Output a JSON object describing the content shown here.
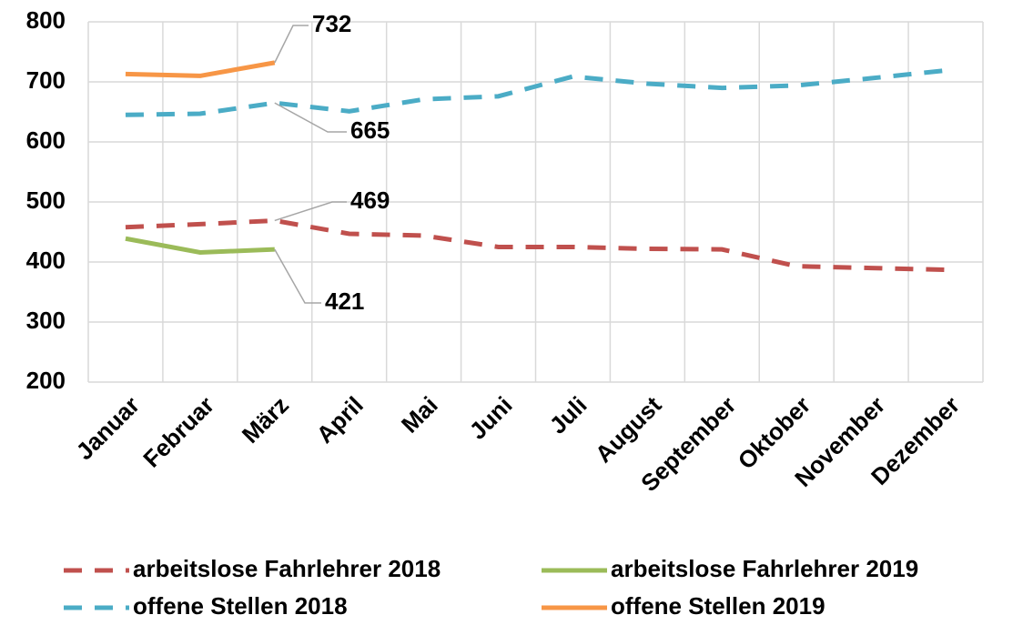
{
  "chart_data": {
    "type": "line",
    "categories": [
      "Januar",
      "Februar",
      "März",
      "April",
      "Mai",
      "Juni",
      "Juli",
      "August",
      "September",
      "Oktober",
      "November",
      "Dezember"
    ],
    "series": [
      {
        "name": "arbeitslose Fahrlehrer 2018",
        "color": "#c0504d",
        "dashed": true,
        "values": [
          458,
          463,
          469,
          447,
          444,
          425,
          425,
          422,
          421,
          393,
          390,
          387
        ]
      },
      {
        "name": "arbeitslose Fahrlehrer 2019",
        "color": "#9bbb59",
        "dashed": false,
        "values": [
          439,
          416,
          421,
          null,
          null,
          null,
          null,
          null,
          null,
          null,
          null,
          null
        ]
      },
      {
        "name": "offene Stellen 2018",
        "color": "#4bacc6",
        "dashed": true,
        "values": [
          645,
          647,
          665,
          651,
          671,
          676,
          709,
          697,
          690,
          694,
          706,
          719
        ]
      },
      {
        "name": "offene Stellen 2019",
        "color": "#f79646",
        "dashed": false,
        "values": [
          713,
          710,
          732,
          null,
          null,
          null,
          null,
          null,
          null,
          null,
          null,
          null
        ]
      }
    ],
    "ylim": [
      200,
      800
    ],
    "yticks": [
      200,
      300,
      400,
      500,
      600,
      700,
      800
    ],
    "grid": true
  }
}
